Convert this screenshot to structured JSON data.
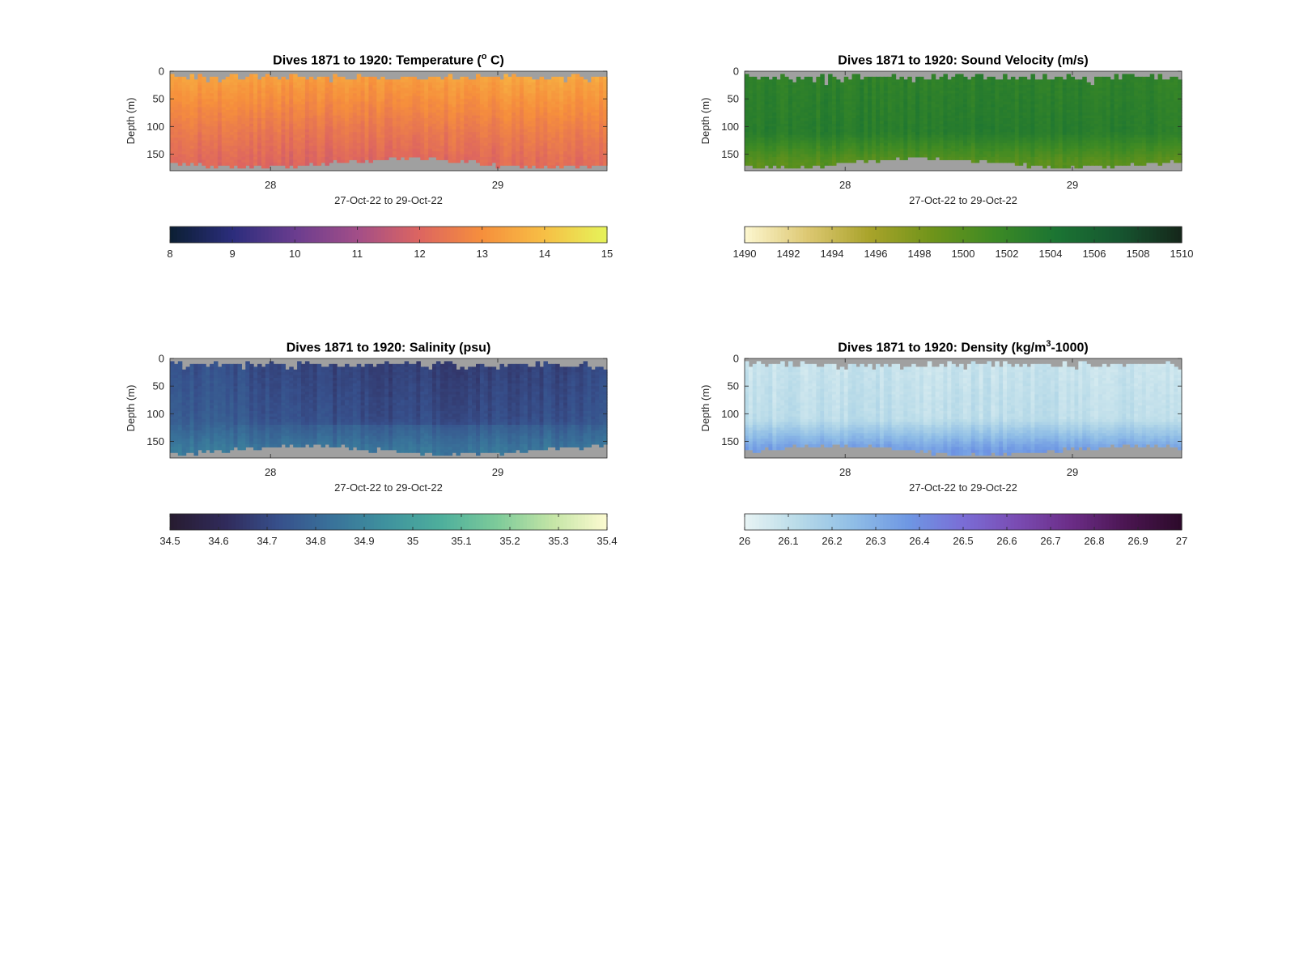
{
  "chart_data": [
    {
      "type": "heatmap",
      "title_main": "Dives 1871 to 1920: Temperature (",
      "title_sup": "o",
      "title_tail": " C)",
      "ylabel": "Depth (m)",
      "xlabel": "27-Oct-22 to 29-Oct-22",
      "x_ticks": [
        "28",
        "29"
      ],
      "y_ticks": [
        "0",
        "50",
        "100",
        "150"
      ],
      "ylim": [
        0,
        180
      ],
      "colorbar": {
        "min": 8,
        "max": 15,
        "ticks": [
          "8",
          "9",
          "10",
          "11",
          "12",
          "13",
          "14",
          "15"
        ],
        "colors": [
          "#0b1f33",
          "#2b2d7c",
          "#6a3d8f",
          "#a24e88",
          "#dd6560",
          "#f68f3c",
          "#f7bf45",
          "#e6f45a"
        ]
      },
      "profile": {
        "surface_value": 13.6,
        "deep_value": 12.6,
        "bottom_value": 12.2
      },
      "missing_color": "#a0a0a0"
    },
    {
      "type": "heatmap",
      "title_main": "Dives 1871 to 1920: Sound Velocity (m/s)",
      "title_sup": "",
      "title_tail": "",
      "ylabel": "Depth (m)",
      "xlabel": "27-Oct-22 to 29-Oct-22",
      "x_ticks": [
        "28",
        "29"
      ],
      "y_ticks": [
        "0",
        "50",
        "100",
        "150"
      ],
      "ylim": [
        0,
        180
      ],
      "colorbar": {
        "min": 1490,
        "max": 1510,
        "ticks": [
          "1490",
          "1492",
          "1494",
          "1496",
          "1498",
          "1500",
          "1502",
          "1504",
          "1506",
          "1508",
          "1510"
        ],
        "colors": [
          "#fdf7d0",
          "#ddc873",
          "#a9a32a",
          "#6f941a",
          "#3d8a24",
          "#1b7433",
          "#165630",
          "#15261a"
        ]
      },
      "profile": {
        "surface_value": 1502.6,
        "deep_value": 1503.2,
        "bottom_value": 1499.8
      },
      "missing_color": "#a0a0a0"
    },
    {
      "type": "heatmap",
      "title_main": "Dives 1871 to 1920: Salinity (psu)",
      "title_sup": "",
      "title_tail": "",
      "ylabel": "Depth (m)",
      "xlabel": "27-Oct-22 to 29-Oct-22",
      "x_ticks": [
        "28",
        "29"
      ],
      "y_ticks": [
        "0",
        "50",
        "100",
        "150"
      ],
      "ylim": [
        0,
        180
      ],
      "colorbar": {
        "min": 34.5,
        "max": 35.4,
        "ticks": [
          "34.5",
          "34.6",
          "34.7",
          "34.8",
          "34.9",
          "35",
          "35.1",
          "35.2",
          "35.3",
          "35.4"
        ],
        "colors": [
          "#271c30",
          "#302a5a",
          "#37508c",
          "#39739a",
          "#3f939e",
          "#4fb09c",
          "#7ecb9a",
          "#c4e5a6",
          "#fdfbd1"
        ]
      },
      "profile": {
        "surface_value": 34.72,
        "deep_value": 34.76,
        "bottom_value": 34.86
      },
      "missing_color": "#a0a0a0"
    },
    {
      "type": "heatmap",
      "title_main": "Dives 1871 to 1920: Density (kg/m",
      "title_sup": "3",
      "title_tail": "-1000)",
      "ylabel": "Depth (m)",
      "xlabel": "27-Oct-22 to 29-Oct-22",
      "x_ticks": [
        "28",
        "29"
      ],
      "y_ticks": [
        "0",
        "50",
        "100",
        "150"
      ],
      "ylim": [
        0,
        180
      ],
      "colorbar": {
        "min": 26,
        "max": 27,
        "ticks": [
          "26",
          "26.1",
          "26.2",
          "26.3",
          "26.4",
          "26.5",
          "26.6",
          "26.7",
          "26.8",
          "26.9",
          "27"
        ],
        "colors": [
          "#e8f4f4",
          "#b7dae8",
          "#8fbde6",
          "#6e97e3",
          "#7a6dd6",
          "#7a4bb2",
          "#6a2c86",
          "#4a1550",
          "#2c0a2a"
        ]
      },
      "profile": {
        "surface_value": 26.08,
        "deep_value": 26.11,
        "bottom_value": 26.36
      },
      "missing_color": "#a0a0a0"
    }
  ]
}
